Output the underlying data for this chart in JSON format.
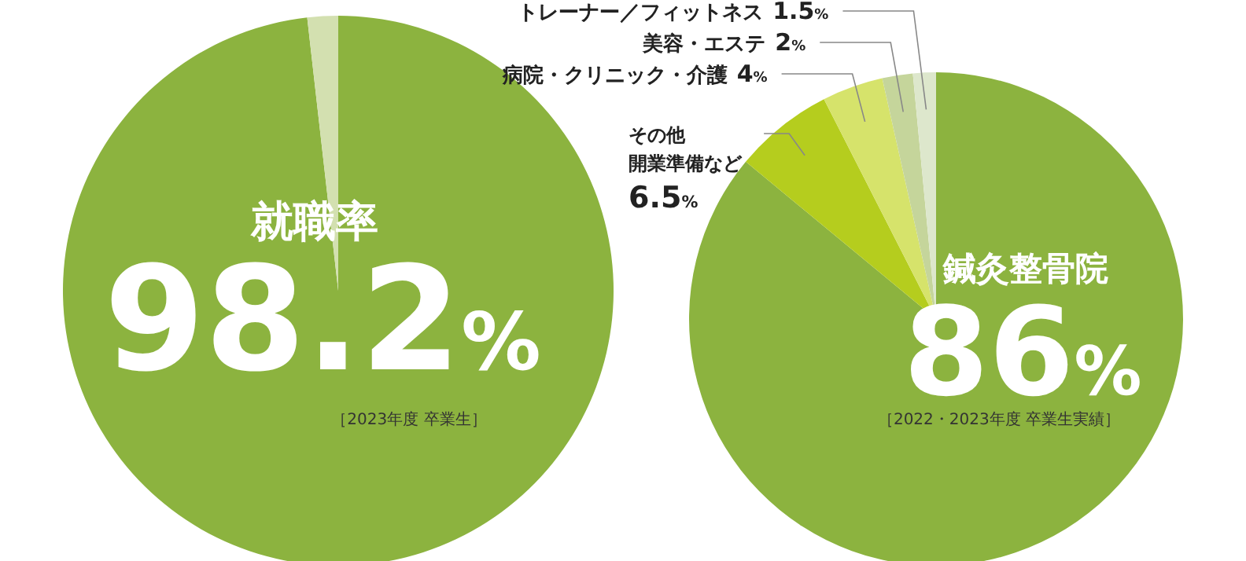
{
  "chart_data": [
    {
      "type": "pie",
      "categories": [
        "就職率",
        null
      ],
      "values": [
        98.2,
        1.8
      ],
      "colors": [
        "#8cb33f",
        "#d3e0b0"
      ],
      "value_labels": [
        "98.2%",
        null
      ],
      "annotations": [
        "［2023年度 卒業生］"
      ]
    },
    {
      "type": "pie",
      "categories": [
        "鍼灸整骨院",
        "その他開業準備など",
        "病院・クリニック・介護",
        "美容・エステ",
        "トレーナー／フィットネス"
      ],
      "values": [
        86,
        6.5,
        4,
        2,
        1.5
      ],
      "colors": [
        "#8cb33f",
        "#b5cd1e",
        "#d6e36b",
        "#c5d59b",
        "#dde7cc"
      ],
      "value_labels": [
        "86%",
        "6.5%",
        "4%",
        "2%",
        "1.5%"
      ],
      "annotations": [
        "［2022・2023年度 卒業生実績］"
      ]
    }
  ]
}
